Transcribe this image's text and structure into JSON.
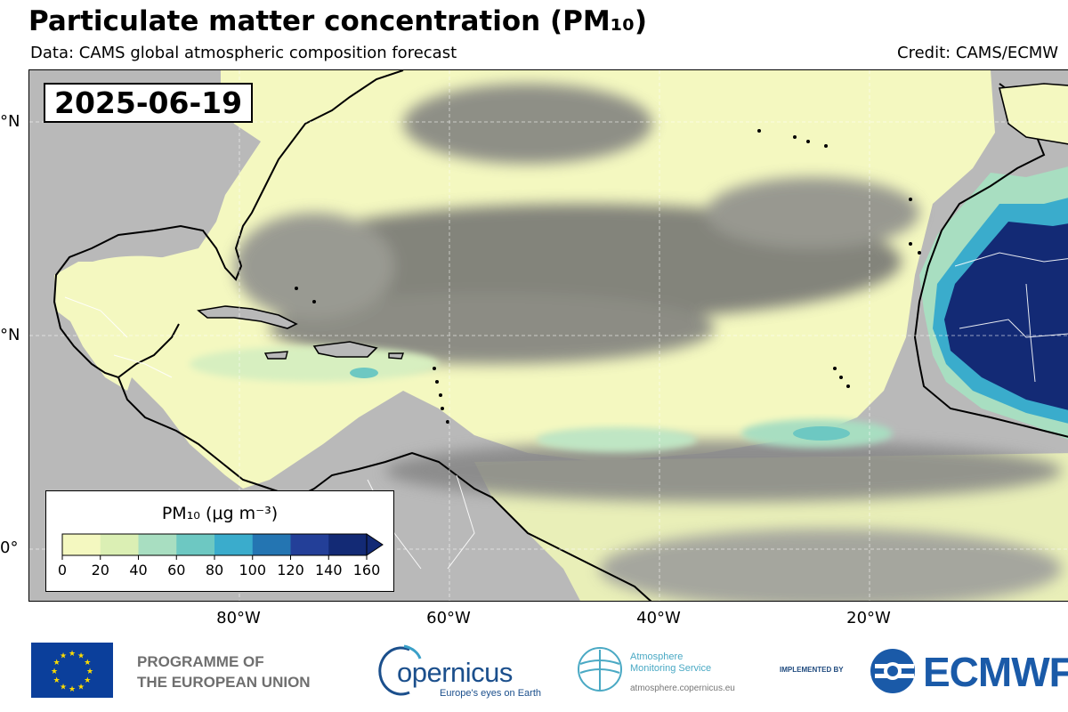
{
  "title": "Particulate matter concentration (PM₁₀)",
  "subtitle": "Data: CAMS global atmospheric composition forecast",
  "credit": "Credit: CAMS/ECMW",
  "map": {
    "date_label": "2025-06-19",
    "lat_labels": [
      "°N",
      "°N",
      "0°"
    ],
    "lon_labels": [
      "80°W",
      "60°W",
      "40°W",
      "20°W"
    ],
    "colors": {
      "land": "#b9b9b9",
      "dust_low": "#f4f8c0",
      "cloud": "#7d7d7d",
      "coast": "#000000",
      "border": "#ffffff",
      "high": "#0f1f6e"
    },
    "legend": {
      "title": "PM₁₀ (μg m⁻³)",
      "ticks": [
        "0",
        "20",
        "40",
        "60",
        "80",
        "100",
        "120",
        "140",
        "160"
      ],
      "colors": [
        "#f4f8c0",
        "#dbefb4",
        "#a8dec1",
        "#6dc8c2",
        "#3aaccc",
        "#2475b2",
        "#233f98",
        "#132a75"
      ]
    }
  },
  "logos": {
    "programme": [
      "PROGRAMME OF",
      "THE EUROPEAN UNION"
    ],
    "copernicus_word": "opernicus",
    "copernicus_tagline": "Europe's eyes on Earth",
    "ams_name": [
      "Atmosphere",
      "Monitoring Service"
    ],
    "ams_url": "atmosphere.copernicus.eu",
    "implemented_by": "IMPLEMENTED BY",
    "ecmwf": "ECMWF"
  }
}
